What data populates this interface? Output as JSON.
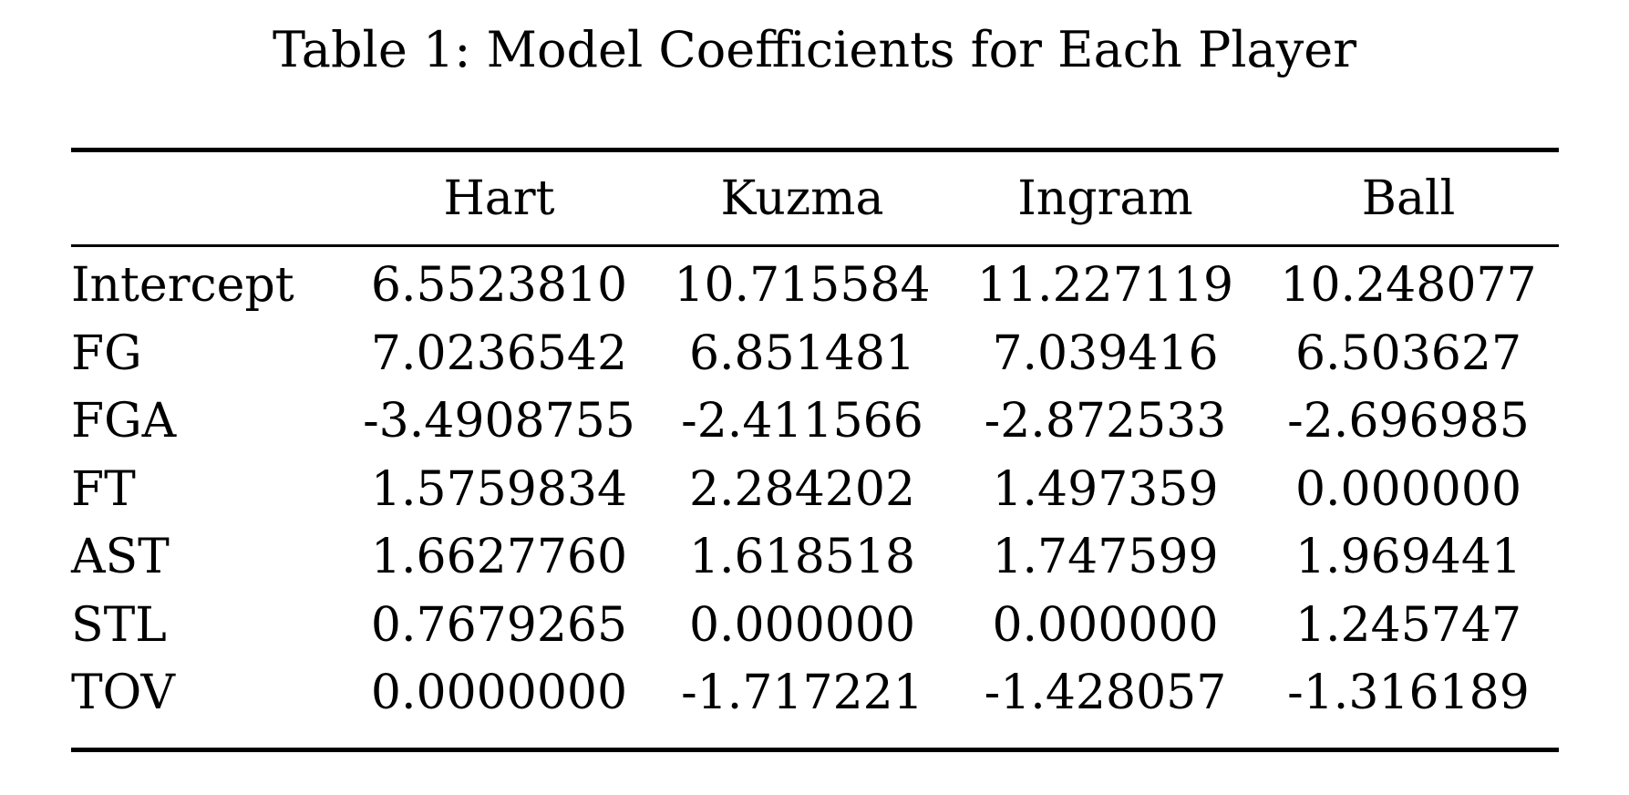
{
  "caption": "Table 1: Model Coefficients for Each Player",
  "table": {
    "columns": [
      "",
      "Hart",
      "Kuzma",
      "Ingram",
      "Ball"
    ],
    "rows": [
      {
        "label": "Intercept",
        "values": [
          "6.5523810",
          "10.715584",
          "11.227119",
          "10.248077"
        ]
      },
      {
        "label": "FG",
        "values": [
          "7.0236542",
          "6.851481",
          "7.039416",
          "6.503627"
        ]
      },
      {
        "label": "FGA",
        "values": [
          "-3.4908755",
          "-2.411566",
          "-2.872533",
          "-2.696985"
        ]
      },
      {
        "label": "FT",
        "values": [
          "1.5759834",
          "2.284202",
          "1.497359",
          "0.000000"
        ]
      },
      {
        "label": "AST",
        "values": [
          "1.6627760",
          "1.618518",
          "1.747599",
          "1.969441"
        ]
      },
      {
        "label": "STL",
        "values": [
          "0.7679265",
          "0.000000",
          "0.000000",
          "1.245747"
        ]
      },
      {
        "label": "TOV",
        "values": [
          "0.0000000",
          "-1.717221",
          "-1.428057",
          "-1.316189"
        ]
      }
    ]
  }
}
